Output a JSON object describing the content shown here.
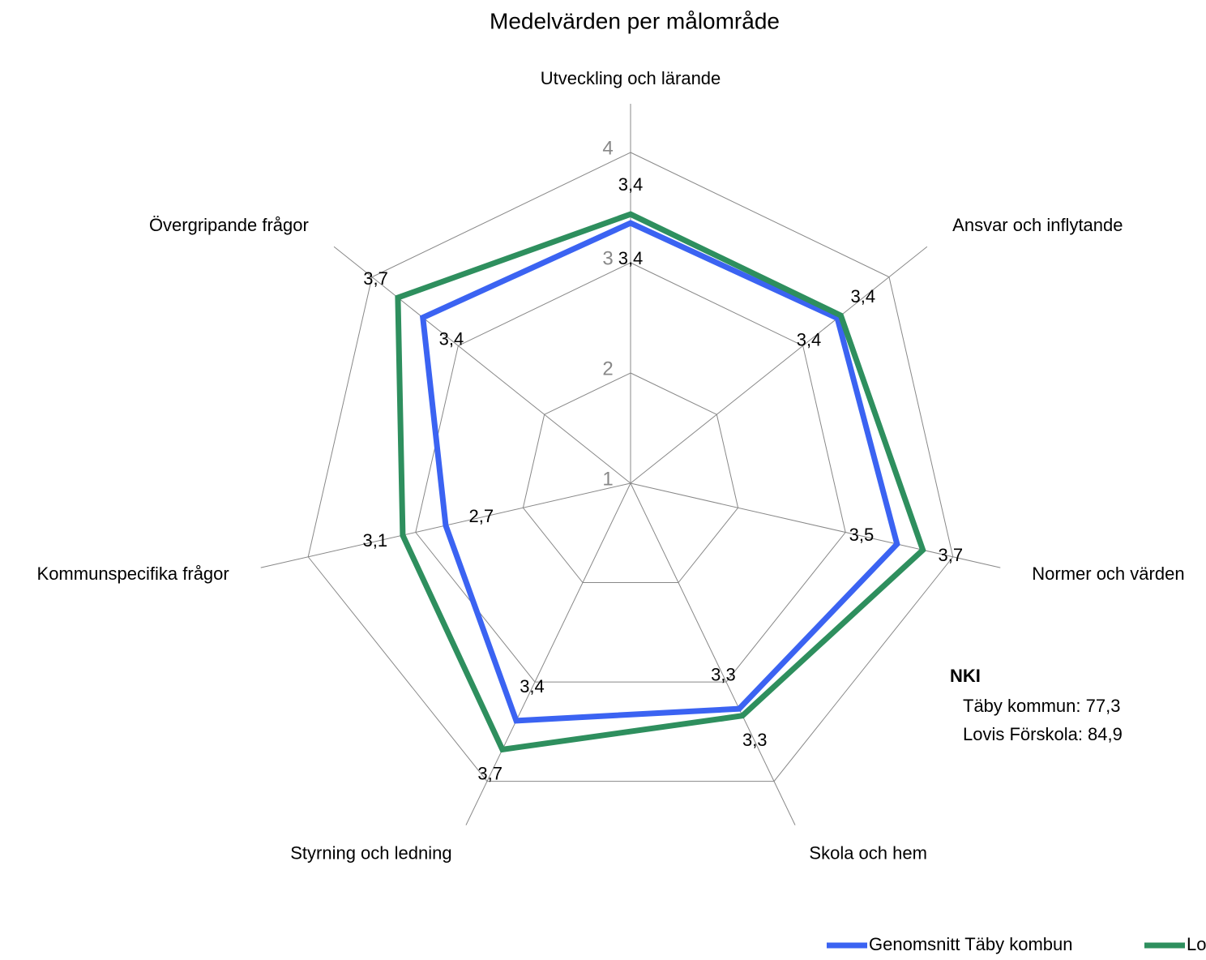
{
  "chart_data": {
    "type": "radar",
    "title": "Medelvärden per målområde",
    "categories": [
      "Utveckling och lärande",
      "Ansvar och inflytande",
      "Normer och värden",
      "Skola och hem",
      "Styrning och ledning",
      "Kommunspecifika frågor",
      "Övergripande frågor"
    ],
    "series": [
      {
        "name": "Genomsnitt Täby kombun",
        "color": "#3b63f2",
        "values": [
          3.36,
          3.4,
          3.48,
          3.27,
          3.39,
          2.72,
          3.41
        ],
        "value_labels": [
          "3,4",
          "3,4",
          "3,5",
          "3,3",
          "3,4",
          "2,7",
          "3,4"
        ]
      },
      {
        "name": "Lovis Förskola",
        "color": "#2e8f5e",
        "values": [
          3.44,
          3.44,
          3.72,
          3.34,
          3.68,
          3.12,
          3.7
        ],
        "value_labels": [
          "3,4",
          "3,4",
          "3,7",
          "3,3",
          "3,7",
          "3,1",
          "3,7"
        ]
      }
    ],
    "rlim": [
      1,
      4
    ],
    "rticks": [
      1,
      2,
      3,
      4
    ],
    "annotations": [
      "NKI",
      "Täby kommun:  77,3",
      "Lovis Förskola:  84,9"
    ]
  }
}
